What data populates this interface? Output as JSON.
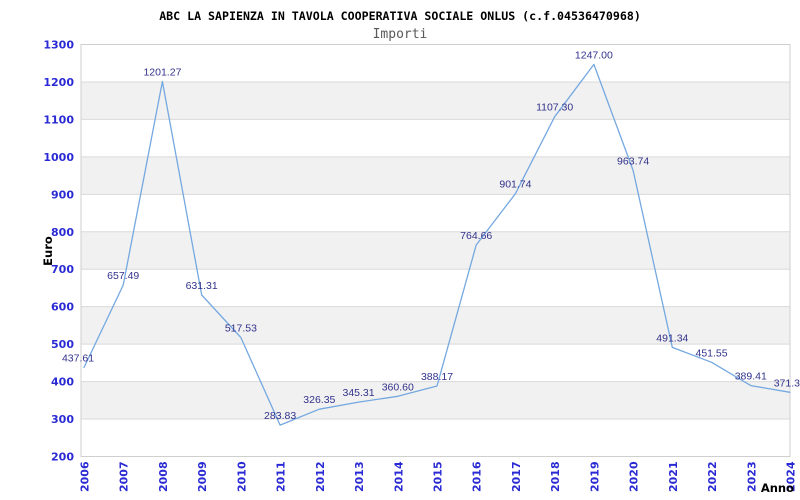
{
  "header": {
    "title": "ABC LA SAPIENZA IN TAVOLA COOPERATIVA SOCIALE ONLUS (c.f.04536470968)",
    "subtitle": "Importi"
  },
  "chart_data": {
    "type": "line",
    "title": "ABC LA SAPIENZA IN TAVOLA COOPERATIVA SOCIALE ONLUS (c.f.04536470968)",
    "subtitle": "Importi",
    "xlabel": "Anno",
    "ylabel": "Euro",
    "x": [
      "2006",
      "2007",
      "2008",
      "2009",
      "2010",
      "2011",
      "2012",
      "2013",
      "2014",
      "2015",
      "2016",
      "2017",
      "2018",
      "2019",
      "2020",
      "2021",
      "2022",
      "2023",
      "2024"
    ],
    "values": [
      437.61,
      657.49,
      1201.27,
      631.31,
      517.53,
      283.83,
      326.35,
      345.31,
      360.6,
      388.17,
      764.66,
      901.74,
      1107.3,
      1247.0,
      963.74,
      491.34,
      451.55,
      389.41,
      371.3
    ],
    "point_labels": [
      "437.61",
      "657.49",
      "1201.27",
      "631.31",
      "517.53",
      "283.83",
      "326.35",
      "345.31",
      "360.60",
      "388.17",
      "764.66",
      "901.74",
      "1107.30",
      "1247.00",
      "963.74",
      "491.34",
      "451.55",
      "389.41",
      "371.3"
    ],
    "ylim": [
      200,
      1300
    ],
    "ytick_step": 100,
    "grid": "horizontal gridlines with alternating gray row bands",
    "legend": "none",
    "colors": {
      "line": "#75a8e0",
      "tick_labels": "#2a2ad4",
      "point_labels": "#32328c",
      "band": "#f1f1f1",
      "gridline": "#dadada",
      "border": "#cfcfcf",
      "title": "#000000",
      "subtitle": "#595959",
      "axis_titles": "#000000",
      "background": "#ffffff"
    }
  }
}
